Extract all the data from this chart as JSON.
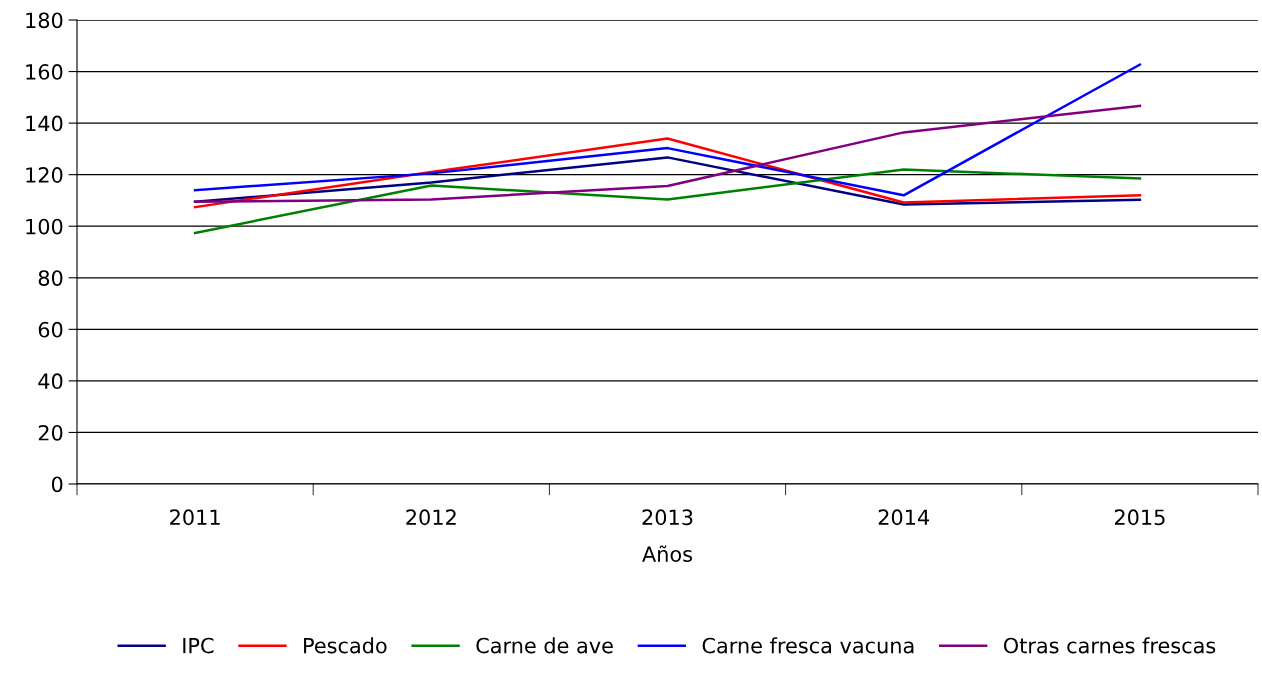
{
  "chart_data": {
    "type": "line",
    "xlabel": "Años",
    "categories": [
      "2011",
      "2012",
      "2013",
      "2014",
      "2015"
    ],
    "series": [
      {
        "name": "IPC",
        "color": "#000080",
        "values": [
          109.5,
          117,
          126.7,
          108.4,
          110.3
        ]
      },
      {
        "name": "Pescado",
        "color": "#ff0000",
        "values": [
          107.4,
          121,
          134,
          109.2,
          112
        ]
      },
      {
        "name": "Carne de ave",
        "color": "#008000",
        "values": [
          97.4,
          115.8,
          110.4,
          122,
          118.5
        ]
      },
      {
        "name": "Carne fresca vacuna",
        "color": "#0000ff",
        "values": [
          114,
          120.5,
          130.3,
          112,
          162.7
        ]
      },
      {
        "name": "Otras carnes frescas",
        "color": "#800080",
        "values": [
          109.5,
          110.4,
          115.6,
          136.4,
          146.7
        ]
      }
    ],
    "ylim": [
      0,
      180
    ],
    "yticks": [
      0,
      20,
      40,
      60,
      80,
      100,
      120,
      140,
      160,
      180
    ],
    "grid": "y",
    "legend": "bottom",
    "marker": "none",
    "line_style": "solid"
  }
}
